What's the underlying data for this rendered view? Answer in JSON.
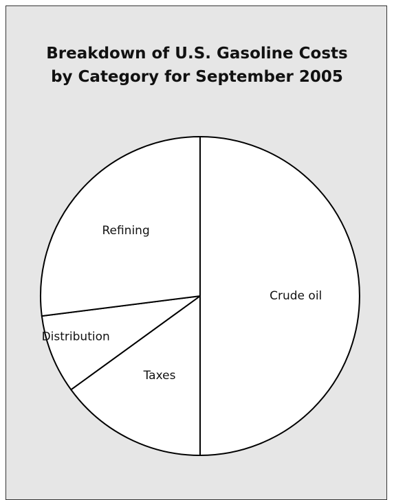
{
  "chart_data": {
    "type": "pie",
    "title": "Breakdown of U.S. Gasoline Costs by Category for September 2005",
    "title_lines": [
      "Breakdown of U.S. Gasoline Costs",
      "by Category for September 2005"
    ],
    "categories": [
      "Crude oil",
      "Taxes",
      "Distribution",
      "Refining"
    ],
    "values": [
      50,
      15,
      8,
      27
    ],
    "colors": [
      "#ffffff",
      "#ffffff",
      "#ffffff",
      "#ffffff"
    ],
    "outline_color": "#000000",
    "start_angle": "top",
    "direction": "clockwise"
  },
  "colors": {
    "panel_background": "#e6e6e6",
    "slice_fill": "#ffffff",
    "slice_stroke": "#000000"
  }
}
